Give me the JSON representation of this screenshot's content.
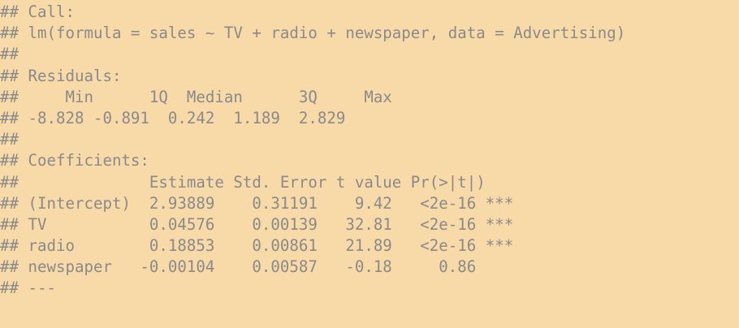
{
  "console_output": {
    "lines": [
      "## Call:",
      "## lm(formula = sales ~ TV + radio + newspaper, data = Advertising)",
      "## ",
      "## Residuals:",
      "##     Min      1Q  Median      3Q     Max ",
      "## -8.828 -0.891  0.242  1.189  2.829 ",
      "## ",
      "## Coefficients:",
      "##              Estimate Std. Error t value Pr(>|t|)    ",
      "## (Intercept)  2.93889    0.31191    9.42   <2e-16 ***",
      "## TV           0.04576    0.00139   32.81   <2e-16 ***",
      "## radio        0.18853    0.00861   21.89   <2e-16 ***",
      "## newspaper   -0.00104    0.00587   -0.18     0.86    ",
      "## ---"
    ]
  }
}
